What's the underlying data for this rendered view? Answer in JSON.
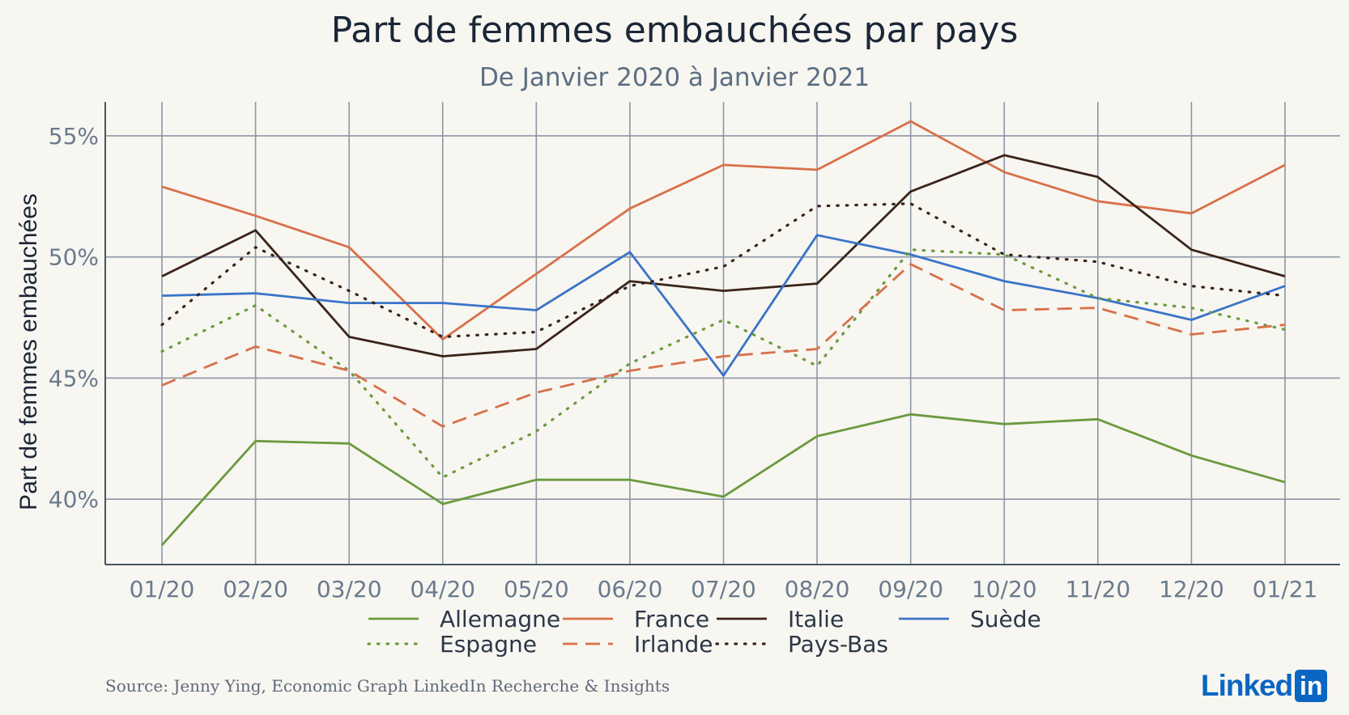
{
  "chart_data": {
    "type": "line",
    "title": "Part de femmes embauchées par pays",
    "subtitle": "De Janvier 2020 à Janvier 2021",
    "ylabel": "Part de femmes embauchées",
    "xlabel": "",
    "categories": [
      "01/20",
      "02/20",
      "03/20",
      "04/20",
      "05/20",
      "06/20",
      "07/20",
      "08/20",
      "09/20",
      "10/20",
      "11/20",
      "12/20",
      "01/21"
    ],
    "ylim": [
      37.3,
      56.4
    ],
    "yticks": [
      40,
      45,
      50,
      55
    ],
    "ytick_labels": [
      "40%",
      "45%",
      "50%",
      "55%"
    ],
    "grid": true,
    "legend": "bottom",
    "series": [
      {
        "name": "Allemagne",
        "color": "#6c9a3f",
        "dash": "solid",
        "values": [
          38.1,
          42.4,
          42.3,
          39.8,
          40.8,
          40.8,
          40.1,
          42.6,
          43.5,
          43.1,
          43.3,
          41.8,
          40.7
        ]
      },
      {
        "name": "France",
        "color": "#d8704a",
        "dash": "solid",
        "values": [
          52.9,
          51.7,
          50.4,
          46.6,
          49.3,
          52.0,
          53.8,
          53.6,
          55.6,
          53.5,
          52.3,
          51.8,
          53.8
        ]
      },
      {
        "name": "Italie",
        "color": "#3a2418",
        "dash": "solid",
        "values": [
          49.2,
          51.1,
          46.7,
          45.9,
          46.2,
          49.0,
          48.6,
          48.9,
          52.7,
          54.2,
          53.3,
          50.3,
          49.2
        ]
      },
      {
        "name": "Suède",
        "color": "#3a74c8",
        "dash": "solid",
        "values": [
          48.4,
          48.5,
          48.1,
          48.1,
          47.8,
          50.2,
          45.1,
          50.9,
          50.1,
          49.0,
          48.3,
          47.4,
          48.8
        ]
      },
      {
        "name": "Espagne",
        "color": "#6c9a3f",
        "dash": "dotted",
        "values": [
          46.1,
          48.0,
          45.3,
          40.9,
          42.8,
          45.6,
          47.4,
          45.5,
          50.3,
          50.1,
          48.3,
          47.9,
          47.0
        ]
      },
      {
        "name": "Irlande",
        "color": "#d8704a",
        "dash": "dashed",
        "values": [
          44.7,
          46.3,
          45.3,
          43.0,
          44.4,
          45.3,
          45.9,
          46.2,
          49.7,
          47.8,
          47.9,
          46.8,
          47.2
        ]
      },
      {
        "name": "Pays-Bas",
        "color": "#3a2418",
        "dash": "dotted",
        "values": [
          47.2,
          50.4,
          48.6,
          46.7,
          46.9,
          48.8,
          49.6,
          52.1,
          52.2,
          50.1,
          49.8,
          48.8,
          48.4
        ]
      }
    ],
    "legend_rows": [
      [
        "Allemagne",
        "France",
        "Italie",
        "Suède"
      ],
      [
        "Espagne",
        "Irlande",
        "Pays-Bas"
      ]
    ]
  },
  "footer": {
    "source": "Source: Jenny Ying, Economic Graph LinkedIn Recherche & Insights",
    "logo_word": "Linked",
    "logo_box": "in"
  }
}
